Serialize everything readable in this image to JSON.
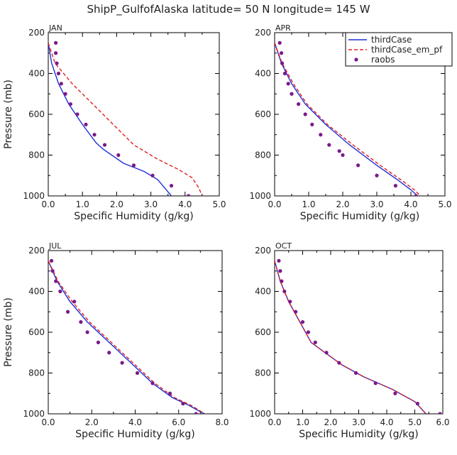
{
  "title": "ShipP_GulfofAlaska  latitude= 50 N longitude= 145 W",
  "colors": {
    "thirdCase": "#1f2fd6",
    "thirdCase_em_pf": "#e02020",
    "raobs": "#7a1a8a"
  },
  "legend": {
    "entries": [
      "thirdCase",
      "thirdCase_em_pf",
      "raobs"
    ],
    "placement": "top-right (APR panel)"
  },
  "chart_data": [
    {
      "type": "line",
      "panel": "JAN",
      "xlabel": "Specific Humidity (g/kg)",
      "ylabel": "Pressure (mb)",
      "xlim": [
        0,
        5
      ],
      "ylim": [
        1000,
        200
      ],
      "xticks": [
        "0.0",
        "1.0",
        "2.0",
        "3.0",
        "4.0",
        "5.0"
      ],
      "yticks": [
        "200",
        "400",
        "600",
        "800",
        "1000"
      ],
      "series": [
        {
          "name": "thirdCase",
          "style": "solid",
          "x": [
            0.0,
            0.1,
            0.3,
            0.6,
            1.0,
            1.4,
            1.6,
            2.2,
            2.8,
            3.2,
            3.45,
            3.6
          ],
          "y": [
            250,
            350,
            450,
            550,
            650,
            740,
            770,
            840,
            880,
            920,
            970,
            1000
          ]
        },
        {
          "name": "thirdCase_em_pf",
          "style": "dashed",
          "x": [
            0.0,
            0.2,
            0.7,
            1.3,
            1.9,
            2.5,
            3.2,
            3.8,
            4.2,
            4.4,
            4.5
          ],
          "y": [
            250,
            350,
            450,
            550,
            650,
            750,
            820,
            870,
            910,
            960,
            1000
          ]
        },
        {
          "name": "raobs",
          "style": "markers",
          "x": [
            0.22,
            0.22,
            0.25,
            0.3,
            0.38,
            0.5,
            0.65,
            0.85,
            1.1,
            1.35,
            1.65,
            2.05,
            2.5,
            3.05,
            3.6,
            4.1
          ],
          "y": [
            250,
            300,
            350,
            400,
            450,
            500,
            550,
            600,
            650,
            700,
            750,
            800,
            850,
            900,
            950,
            1000
          ]
        }
      ]
    },
    {
      "type": "line",
      "panel": "APR",
      "xlabel": "Specific Humidity (g/kg)",
      "ylabel": "",
      "xlim": [
        0,
        5
      ],
      "ylim": [
        1000,
        200
      ],
      "xticks": [
        "0.0",
        "1.0",
        "2.0",
        "3.0",
        "4.0",
        "5.0"
      ],
      "yticks": [
        "200",
        "400",
        "600",
        "800",
        "1000"
      ],
      "series": [
        {
          "name": "thirdCase",
          "style": "solid",
          "x": [
            0.0,
            0.2,
            0.5,
            0.9,
            1.5,
            2.2,
            3.0,
            3.6,
            4.0,
            4.2
          ],
          "y": [
            250,
            350,
            450,
            550,
            650,
            750,
            850,
            920,
            970,
            1000
          ]
        },
        {
          "name": "thirdCase_em_pf",
          "style": "dashed",
          "x": [
            0.0,
            0.22,
            0.55,
            0.95,
            1.55,
            2.3,
            3.1,
            3.7,
            4.1,
            4.28
          ],
          "y": [
            250,
            350,
            450,
            550,
            650,
            750,
            850,
            920,
            970,
            1000
          ]
        },
        {
          "name": "raobs",
          "style": "markers",
          "x": [
            0.15,
            0.2,
            0.22,
            0.3,
            0.4,
            0.5,
            0.7,
            0.9,
            1.1,
            1.35,
            1.6,
            1.9,
            2.0,
            2.45,
            3.0,
            3.55,
            4.15
          ],
          "y": [
            250,
            300,
            350,
            400,
            450,
            500,
            550,
            600,
            650,
            700,
            750,
            780,
            800,
            850,
            900,
            950,
            1000
          ]
        }
      ]
    },
    {
      "type": "line",
      "panel": "JUL",
      "xlabel": "Specific Humidity (g/kg)",
      "ylabel": "Pressure (mb)",
      "xlim": [
        0,
        8
      ],
      "ylim": [
        1000,
        200
      ],
      "xticks": [
        "0.0",
        "2.0",
        "4.0",
        "6.0",
        "8.0"
      ],
      "yticks": [
        "200",
        "400",
        "600",
        "800",
        "1000"
      ],
      "series": [
        {
          "name": "thirdCase",
          "style": "solid",
          "x": [
            0.0,
            0.4,
            1.0,
            1.8,
            2.8,
            3.8,
            4.8,
            5.7,
            6.5,
            7.0,
            7.2
          ],
          "y": [
            250,
            350,
            450,
            550,
            650,
            750,
            850,
            920,
            960,
            990,
            1000
          ]
        },
        {
          "name": "thirdCase_em_pf",
          "style": "dashed",
          "x": [
            0.0,
            0.45,
            1.1,
            1.9,
            2.9,
            3.9,
            4.9,
            5.8,
            6.6,
            7.05,
            7.2
          ],
          "y": [
            250,
            350,
            450,
            550,
            650,
            750,
            850,
            920,
            960,
            990,
            1000
          ]
        },
        {
          "name": "raobs",
          "style": "markers",
          "x": [
            0.15,
            0.2,
            0.35,
            0.55,
            0.9,
            1.2,
            1.5,
            1.8,
            2.3,
            2.8,
            3.4,
            4.1,
            4.8,
            5.6,
            6.2,
            6.8
          ],
          "y": [
            250,
            300,
            350,
            400,
            500,
            450,
            550,
            600,
            650,
            700,
            750,
            800,
            850,
            900,
            950,
            1000
          ]
        }
      ]
    },
    {
      "type": "line",
      "panel": "OCT",
      "xlabel": "Specific Humidity (g/kg)",
      "ylabel": "",
      "xlim": [
        0,
        6
      ],
      "ylim": [
        1000,
        200
      ],
      "xticks": [
        "0.0",
        "1.0",
        "2.0",
        "3.0",
        "4.0",
        "5.0",
        "6.0"
      ],
      "yticks": [
        "200",
        "400",
        "600",
        "800",
        "1000"
      ],
      "series": [
        {
          "name": "thirdCase",
          "style": "solid",
          "x": [
            0.0,
            0.2,
            0.5,
            0.9,
            1.3,
            1.8,
            2.4,
            3.2,
            4.2,
            5.0,
            5.4
          ],
          "y": [
            250,
            350,
            450,
            550,
            650,
            700,
            760,
            820,
            880,
            940,
            1000
          ]
        },
        {
          "name": "thirdCase_em_pf",
          "style": "dashed",
          "x": [
            0.0,
            0.2,
            0.5,
            0.9,
            1.3,
            1.8,
            2.4,
            3.2,
            4.2,
            5.0,
            5.4
          ],
          "y": [
            250,
            350,
            450,
            550,
            650,
            700,
            760,
            820,
            880,
            940,
            1000
          ]
        },
        {
          "name": "raobs",
          "style": "markers",
          "x": [
            0.15,
            0.2,
            0.25,
            0.35,
            0.55,
            0.75,
            1.0,
            1.2,
            1.45,
            1.85,
            2.3,
            2.9,
            3.6,
            4.3,
            5.1,
            5.9
          ],
          "y": [
            250,
            300,
            350,
            400,
            450,
            500,
            550,
            600,
            650,
            700,
            750,
            800,
            850,
            900,
            950,
            1000
          ]
        }
      ]
    }
  ]
}
